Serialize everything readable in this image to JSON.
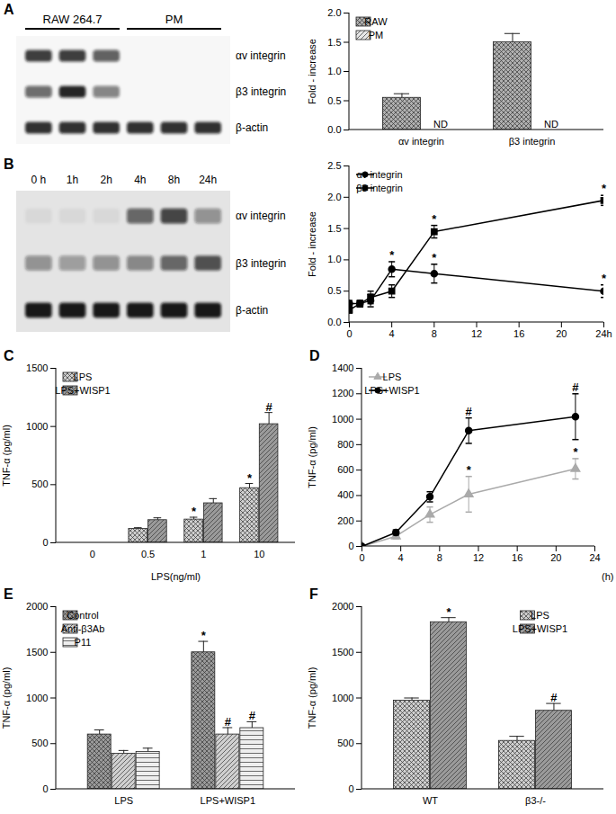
{
  "chart_data": [
    {
      "type": "bar",
      "categories": [
        "αv integrin",
        "β3 integrin"
      ],
      "y_label": "Fold - increase",
      "ylim": [
        0,
        2
      ],
      "yticks": [
        {
          "value": 0,
          "label": "0.0"
        },
        0.5,
        {
          "value": 1,
          "label": "1.0"
        },
        1.5,
        {
          "value": 2,
          "label": "2.0"
        }
      ],
      "legend": "top left",
      "series": [
        {
          "name": "RAW",
          "color": "#b0b0b0",
          "values": [
            0.55,
            1.5
          ],
          "errors": [
            0.07,
            0.15
          ]
        },
        {
          "name": "PM",
          "color": "#e6e6e6",
          "values": [
            null,
            null
          ],
          "value_labels": [
            "ND",
            "ND"
          ]
        }
      ]
    },
    {
      "type": "line",
      "x": [
        0,
        1,
        2,
        4,
        8,
        24
      ],
      "xlim": [
        0,
        24
      ],
      "xticks": [
        0,
        4,
        8,
        12,
        16,
        20,
        {
          "value": 24,
          "label": "24h"
        }
      ],
      "y_label": "Fold - increase",
      "ylim": [
        0,
        2.5
      ],
      "yticks": [
        {
          "value": 0,
          "label": "0.0"
        },
        0.5,
        {
          "value": 1,
          "label": "1.0"
        },
        1.5,
        {
          "value": 2,
          "label": "2.0"
        },
        2.5
      ],
      "legend": "top left",
      "series": [
        {
          "name": "αv integrin",
          "color": "#000000",
          "marker": "circle",
          "values": [
            0.3,
            0.3,
            0.35,
            0.85,
            0.78,
            0.5
          ],
          "errors": [
            0.05,
            0.05,
            0.1,
            0.12,
            0.15,
            0.1
          ],
          "annotations": [
            null,
            null,
            null,
            "*",
            "*",
            "*"
          ]
        },
        {
          "name": "β3 integrin",
          "color": "#000000",
          "marker": "square",
          "values": [
            0.2,
            0.3,
            0.4,
            0.5,
            1.45,
            1.95
          ],
          "errors": [
            0.05,
            0.05,
            0.1,
            0.1,
            0.1,
            0.08
          ],
          "annotations": [
            null,
            null,
            null,
            null,
            "*",
            "*"
          ]
        }
      ]
    },
    {
      "type": "bar",
      "title": "C",
      "categories": [
        0,
        0.5,
        1,
        10
      ],
      "x_label": "LPS(ng/ml)",
      "y_label": "TNF-α (pg/ml)",
      "ylim": [
        0,
        1500
      ],
      "yticks": [
        0,
        500,
        1000,
        1500
      ],
      "legend": "top left",
      "series": [
        {
          "name": "LPS",
          "color": "#cfcfcf",
          "values": [
            0,
            120,
            200,
            470
          ],
          "errors": [
            0,
            10,
            20,
            40
          ],
          "annotations": [
            null,
            null,
            "*",
            "*"
          ]
        },
        {
          "name": "LPS+WISP1",
          "color": "#9a9a9a",
          "values": [
            0,
            195,
            340,
            1020
          ],
          "errors": [
            0,
            20,
            40,
            100
          ],
          "annotations": [
            null,
            null,
            null,
            "#"
          ]
        }
      ]
    },
    {
      "type": "line",
      "title": "D",
      "x": [
        0,
        3.5,
        7,
        11,
        22
      ],
      "xlim": [
        0,
        24
      ],
      "xticks": [
        0,
        4,
        8,
        12,
        16,
        20,
        24
      ],
      "x_label": "(h)",
      "y_label": "TNF-α (pg/ml)",
      "ylim": [
        0,
        1400
      ],
      "yticks": [
        0,
        200,
        400,
        600,
        800,
        1000,
        1200,
        1400
      ],
      "legend": "top left",
      "series": [
        {
          "name": "LPS",
          "color": "#aaaaaa",
          "marker": "triangle",
          "values": [
            0,
            80,
            250,
            410,
            610
          ],
          "errors": [
            10,
            20,
            60,
            140,
            80
          ],
          "annotations": [
            null,
            null,
            null,
            "*",
            "*"
          ]
        },
        {
          "name": "LPS+WISP1",
          "color": "#000000",
          "marker": "circle",
          "values": [
            0,
            110,
            390,
            910,
            1020
          ],
          "errors": [
            10,
            20,
            40,
            100,
            180
          ],
          "annotations": [
            null,
            null,
            null,
            "#",
            "#"
          ]
        }
      ]
    },
    {
      "type": "bar",
      "title": "E",
      "categories": [
        "LPS",
        "LPS+WISP1"
      ],
      "y_label": "TNF-α (pg/ml)",
      "ylim": [
        0,
        2000
      ],
      "yticks": [
        0,
        500,
        1000,
        1500,
        2000
      ],
      "legend": "top left",
      "series": [
        {
          "name": "Control",
          "color": "#9a9a9a",
          "values": [
            600,
            1500
          ],
          "errors": [
            50,
            120
          ],
          "annotations": [
            null,
            "*"
          ]
        },
        {
          "name": "Anti-β3Ab",
          "color": "#cfcfcf",
          "values": [
            390,
            600
          ],
          "errors": [
            35,
            75
          ],
          "annotations": [
            null,
            "#"
          ]
        },
        {
          "name": "P11",
          "color": "#eeeeee",
          "values": [
            410,
            670
          ],
          "errors": [
            40,
            70
          ],
          "annotations": [
            null,
            "#"
          ]
        }
      ]
    },
    {
      "type": "bar",
      "title": "F",
      "categories": [
        "WT",
        "β3-/-"
      ],
      "y_label": "TNF-α (pg/ml)",
      "ylim": [
        0,
        2000
      ],
      "yticks": [
        0,
        500,
        1000,
        1500,
        2000
      ],
      "legend": "top right",
      "series": [
        {
          "name": "LPS",
          "color": "#cfcfcf",
          "values": [
            970,
            530
          ],
          "errors": [
            30,
            50
          ],
          "annotations": [
            null,
            null
          ]
        },
        {
          "name": "LPS+WISP1",
          "color": "#9a9a9a",
          "values": [
            1830,
            860
          ],
          "errors": [
            50,
            80
          ],
          "annotations": [
            "*",
            "#"
          ]
        }
      ]
    }
  ],
  "blots": [
    {
      "title": "A",
      "groups": [
        {
          "label": "RAW 264.7",
          "lanes": 3
        },
        {
          "label": "PM",
          "lanes": 3
        }
      ],
      "rows": [
        {
          "label": "αv integrin",
          "intensity": [
            0.8,
            0.8,
            0.65,
            0,
            0,
            0
          ]
        },
        {
          "label": "β3 integrin",
          "intensity": [
            0.6,
            0.9,
            0.5,
            0,
            0,
            0
          ]
        },
        {
          "label": "β-actin",
          "intensity": [
            0.85,
            0.85,
            0.85,
            0.85,
            0.85,
            0.85
          ]
        }
      ]
    },
    {
      "title": "B",
      "lanes": [
        "0 h",
        "1h",
        "2h",
        "4h",
        "8h",
        "24h"
      ],
      "rows": [
        {
          "label": "αv integrin",
          "intensity": [
            0.05,
            0.05,
            0.05,
            0.6,
            0.75,
            0.4
          ]
        },
        {
          "label": "β3 integrin",
          "intensity": [
            0.4,
            0.35,
            0.4,
            0.45,
            0.6,
            0.7
          ]
        },
        {
          "label": "β-actin",
          "intensity": [
            0.95,
            0.95,
            0.95,
            0.95,
            0.95,
            0.95
          ]
        }
      ]
    }
  ]
}
